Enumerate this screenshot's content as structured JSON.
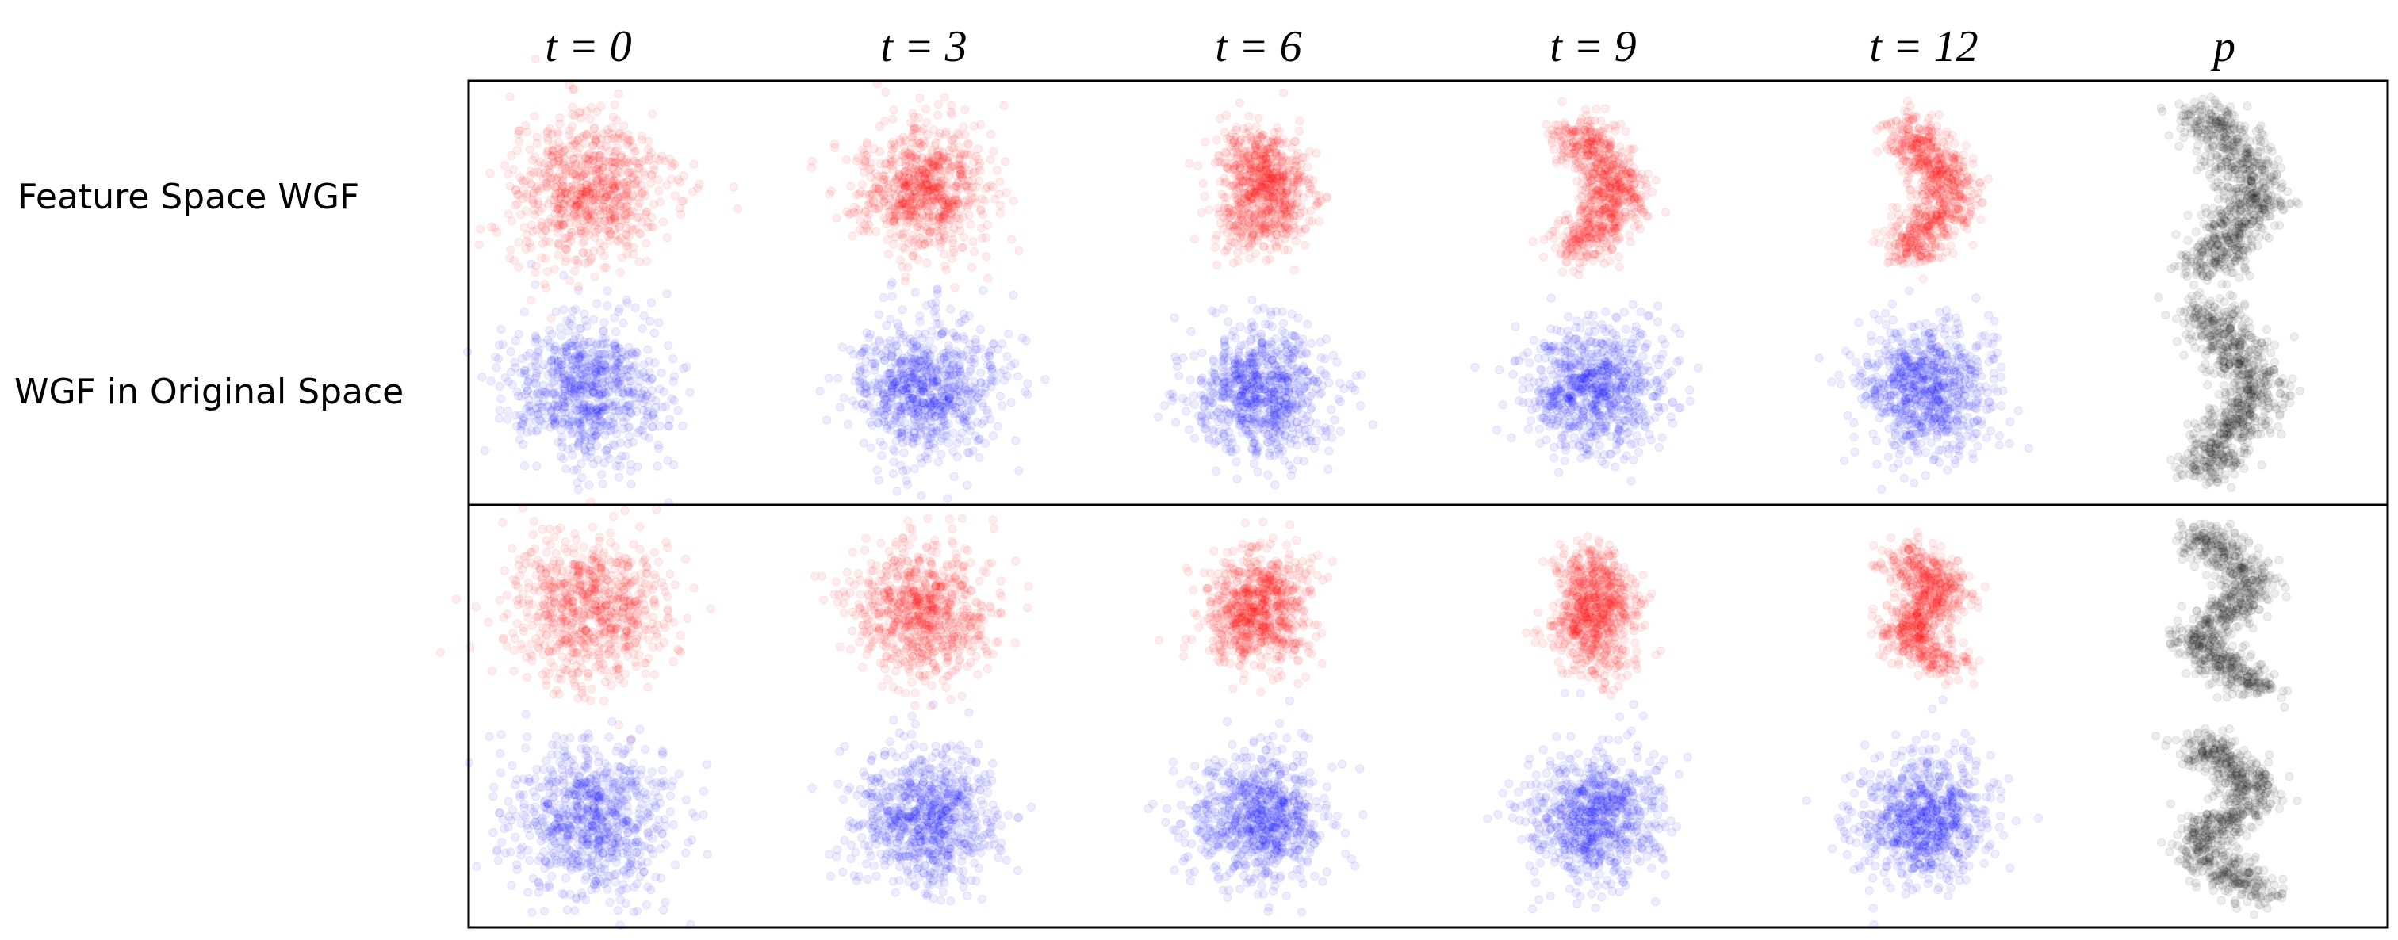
{
  "column_headers": [
    "t = 0",
    "t = 3",
    "t = 6",
    "t = 9",
    "t = 12",
    "p"
  ],
  "row_labels": [
    "Feature Space WGF",
    "WGF in Original Space"
  ]
}
